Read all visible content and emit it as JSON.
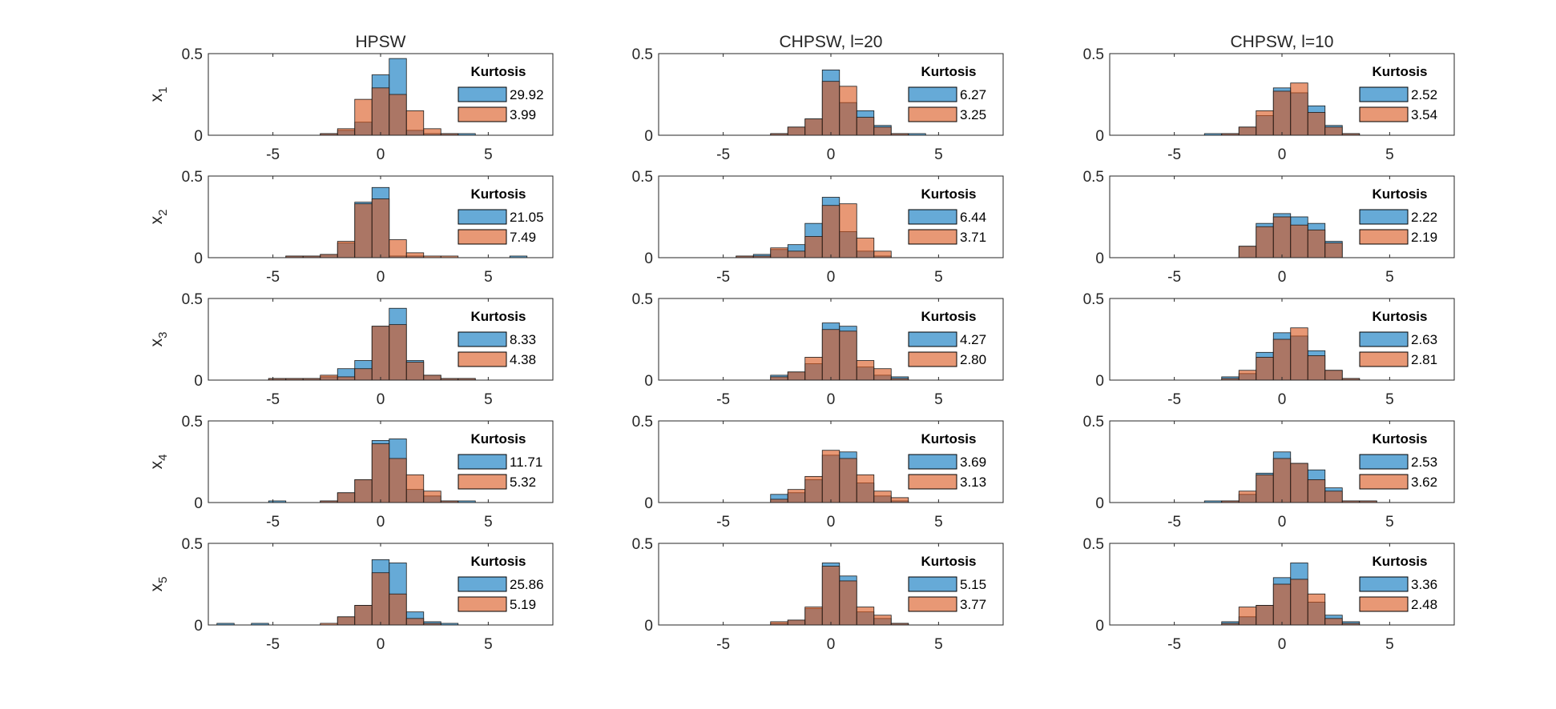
{
  "figure": {
    "colors": {
      "series_a": "#0072BD",
      "series_b": "#D95319",
      "overlap": "#6E3D33",
      "axis": "#262626",
      "edge": "#1a1a1a"
    },
    "legend_title": "Kurtosis",
    "y_var_prefix": "x"
  },
  "chart_data": {
    "type": "histogram",
    "layout": "5 rows x 3 columns",
    "column_titles": [
      "HPSW",
      "CHPSW, l=20",
      "CHPSW, l=10"
    ],
    "row_labels": [
      {
        "base": "x",
        "sub": "1"
      },
      {
        "base": "x",
        "sub": "2"
      },
      {
        "base": "x",
        "sub": "3"
      },
      {
        "base": "x",
        "sub": "4"
      },
      {
        "base": "x",
        "sub": "5"
      }
    ],
    "xlim": [
      -8,
      8
    ],
    "ylim": [
      0,
      0.5
    ],
    "xticks": [
      -5,
      0,
      5
    ],
    "xtick_labels": [
      "-5",
      "0",
      "5"
    ],
    "yticks": [
      0,
      0.5
    ],
    "ytick_labels": [
      "0",
      "0.5"
    ],
    "bin_width": 0.8,
    "bin_start": -7.6,
    "bin_centers": [
      -7.2,
      -6.4,
      -5.6,
      -4.8,
      -4.0,
      -3.2,
      -2.4,
      -1.6,
      -0.8,
      0.0,
      0.8,
      1.6,
      2.4,
      3.2,
      4.0,
      4.8,
      5.6,
      6.4,
      7.2
    ],
    "ylabel": "",
    "xlabel": "",
    "panels": [
      [
        {
          "kurtosis": [
            "29.92",
            "3.99"
          ],
          "series_a": [
            0,
            0,
            0,
            0,
            0,
            0,
            0.01,
            0.03,
            0.08,
            0.37,
            0.47,
            0.03,
            0.01,
            0.01,
            0.01,
            0,
            0,
            0,
            0
          ],
          "series_b": [
            0,
            0,
            0,
            0,
            0,
            0,
            0.01,
            0.04,
            0.22,
            0.29,
            0.25,
            0.15,
            0.04,
            0.01,
            0,
            0,
            0,
            0,
            0
          ]
        },
        {
          "kurtosis": [
            "6.27",
            "3.25"
          ],
          "series_a": [
            0,
            0,
            0,
            0,
            0,
            0,
            0.01,
            0.05,
            0.1,
            0.4,
            0.2,
            0.15,
            0.06,
            0.01,
            0.01,
            0,
            0,
            0,
            0
          ],
          "series_b": [
            0,
            0,
            0,
            0,
            0,
            0,
            0.01,
            0.05,
            0.1,
            0.33,
            0.3,
            0.11,
            0.05,
            0.01,
            0,
            0,
            0,
            0,
            0
          ]
        },
        {
          "kurtosis": [
            "2.52",
            "3.54"
          ],
          "series_a": [
            0,
            0,
            0,
            0,
            0,
            0.01,
            0.01,
            0.05,
            0.12,
            0.29,
            0.26,
            0.18,
            0.06,
            0.01,
            0,
            0,
            0,
            0,
            0
          ],
          "series_b": [
            0,
            0,
            0,
            0,
            0,
            0,
            0.01,
            0.05,
            0.15,
            0.27,
            0.32,
            0.14,
            0.05,
            0.01,
            0,
            0,
            0,
            0,
            0
          ]
        }
      ],
      [
        {
          "kurtosis": [
            "21.05",
            "7.49"
          ],
          "series_a": [
            0,
            0,
            0,
            0,
            0.01,
            0.01,
            0.02,
            0.09,
            0.34,
            0.43,
            0.01,
            0.01,
            0,
            0,
            0,
            0,
            0,
            0.01,
            0
          ],
          "series_b": [
            0,
            0,
            0,
            0,
            0.01,
            0.01,
            0.02,
            0.1,
            0.33,
            0.36,
            0.11,
            0.03,
            0.01,
            0.01,
            0,
            0,
            0,
            0,
            0
          ]
        },
        {
          "kurtosis": [
            "6.44",
            "3.71"
          ],
          "series_a": [
            0,
            0,
            0,
            0,
            0.01,
            0.02,
            0.05,
            0.08,
            0.21,
            0.37,
            0.16,
            0.04,
            0.01,
            0,
            0,
            0,
            0,
            0,
            0
          ],
          "series_b": [
            0,
            0,
            0,
            0,
            0.01,
            0.01,
            0.06,
            0.04,
            0.13,
            0.32,
            0.33,
            0.12,
            0.04,
            0,
            0,
            0,
            0,
            0,
            0
          ]
        },
        {
          "kurtosis": [
            "2.22",
            "2.19"
          ],
          "series_a": [
            0,
            0,
            0,
            0,
            0,
            0,
            0,
            0.07,
            0.21,
            0.27,
            0.25,
            0.21,
            0.1,
            0,
            0,
            0,
            0,
            0,
            0
          ],
          "series_b": [
            0,
            0,
            0,
            0,
            0,
            0,
            0,
            0.07,
            0.19,
            0.25,
            0.2,
            0.17,
            0.09,
            0,
            0,
            0,
            0,
            0,
            0
          ]
        }
      ],
      [
        {
          "kurtosis": [
            "8.33",
            "4.38"
          ],
          "series_a": [
            0,
            0,
            0,
            0.01,
            0.01,
            0.01,
            0.02,
            0.07,
            0.12,
            0.33,
            0.44,
            0.12,
            0.03,
            0.01,
            0.01,
            0,
            0,
            0,
            0
          ],
          "series_b": [
            0,
            0,
            0,
            0.01,
            0.01,
            0.01,
            0.03,
            0.02,
            0.07,
            0.33,
            0.34,
            0.11,
            0.03,
            0.01,
            0.01,
            0,
            0,
            0,
            0
          ]
        },
        {
          "kurtosis": [
            "4.27",
            "2.80"
          ],
          "series_a": [
            0,
            0,
            0,
            0,
            0,
            0,
            0.03,
            0.05,
            0.1,
            0.35,
            0.33,
            0.08,
            0.03,
            0.02,
            0,
            0,
            0,
            0,
            0
          ],
          "series_b": [
            0,
            0,
            0,
            0,
            0,
            0,
            0.02,
            0.05,
            0.14,
            0.31,
            0.3,
            0.12,
            0.07,
            0.01,
            0,
            0,
            0,
            0,
            0
          ]
        },
        {
          "kurtosis": [
            "2.63",
            "2.81"
          ],
          "series_a": [
            0,
            0,
            0,
            0,
            0,
            0,
            0.02,
            0.04,
            0.17,
            0.29,
            0.27,
            0.18,
            0.06,
            0.01,
            0,
            0,
            0,
            0,
            0
          ],
          "series_b": [
            0,
            0,
            0,
            0,
            0,
            0,
            0.01,
            0.06,
            0.14,
            0.25,
            0.32,
            0.15,
            0.06,
            0.01,
            0,
            0,
            0,
            0,
            0
          ]
        }
      ],
      [
        {
          "kurtosis": [
            "11.71",
            "5.32"
          ],
          "series_a": [
            0,
            0,
            0,
            0.01,
            0,
            0,
            0.01,
            0.06,
            0.14,
            0.38,
            0.39,
            0.08,
            0.04,
            0.01,
            0.01,
            0,
            0,
            0,
            0
          ],
          "series_b": [
            0,
            0,
            0,
            0,
            0,
            0,
            0.01,
            0.06,
            0.14,
            0.36,
            0.27,
            0.17,
            0.07,
            0.01,
            0,
            0,
            0,
            0,
            0
          ]
        },
        {
          "kurtosis": [
            "3.69",
            "3.13"
          ],
          "series_a": [
            0,
            0,
            0,
            0,
            0,
            0,
            0.05,
            0.06,
            0.14,
            0.29,
            0.31,
            0.12,
            0.04,
            0.01,
            0,
            0,
            0,
            0,
            0
          ],
          "series_b": [
            0,
            0,
            0,
            0,
            0,
            0,
            0.02,
            0.08,
            0.16,
            0.32,
            0.27,
            0.17,
            0.07,
            0.03,
            0,
            0,
            0,
            0,
            0
          ]
        },
        {
          "kurtosis": [
            "2.53",
            "3.62"
          ],
          "series_a": [
            0,
            0,
            0,
            0,
            0,
            0.01,
            0.01,
            0.05,
            0.18,
            0.31,
            0.24,
            0.2,
            0.09,
            0.01,
            0.01,
            0,
            0,
            0,
            0
          ],
          "series_b": [
            0,
            0,
            0,
            0,
            0,
            0,
            0.01,
            0.07,
            0.17,
            0.27,
            0.24,
            0.14,
            0.07,
            0.01,
            0.01,
            0,
            0,
            0,
            0
          ]
        }
      ],
      [
        {
          "kurtosis": [
            "25.86",
            "5.19"
          ],
          "series_a": [
            0.01,
            0,
            0.01,
            0,
            0,
            0,
            0,
            0.05,
            0.12,
            0.4,
            0.38,
            0.08,
            0.02,
            0.01,
            0,
            0,
            0,
            0,
            0
          ],
          "series_b": [
            0,
            0,
            0,
            0,
            0,
            0,
            0.01,
            0.05,
            0.12,
            0.32,
            0.19,
            0.04,
            0.01,
            0,
            0,
            0,
            0,
            0,
            0
          ]
        },
        {
          "kurtosis": [
            "5.15",
            "3.77"
          ],
          "series_a": [
            0,
            0,
            0,
            0,
            0,
            0,
            0.01,
            0.03,
            0.1,
            0.38,
            0.3,
            0.08,
            0.04,
            0.01,
            0,
            0,
            0,
            0,
            0
          ],
          "series_b": [
            0,
            0,
            0,
            0,
            0,
            0,
            0.02,
            0.03,
            0.11,
            0.36,
            0.27,
            0.11,
            0.06,
            0.01,
            0,
            0,
            0,
            0,
            0
          ]
        },
        {
          "kurtosis": [
            "3.36",
            "2.48"
          ],
          "series_a": [
            0,
            0,
            0,
            0,
            0,
            0,
            0.02,
            0.05,
            0.12,
            0.29,
            0.38,
            0.14,
            0.06,
            0.02,
            0,
            0,
            0,
            0,
            0
          ],
          "series_b": [
            0,
            0,
            0,
            0,
            0,
            0,
            0.01,
            0.11,
            0.12,
            0.25,
            0.28,
            0.19,
            0.04,
            0.01,
            0,
            0,
            0,
            0,
            0
          ]
        }
      ]
    ]
  }
}
